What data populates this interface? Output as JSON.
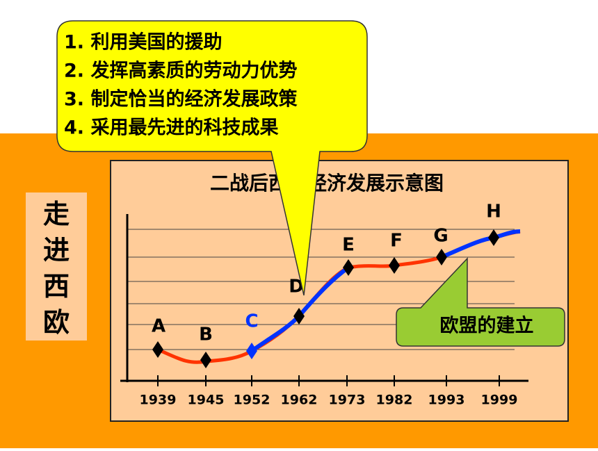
{
  "side_title": "走进西欧",
  "callout": {
    "items": [
      "1. 利用美国的援助",
      "2. 发挥高素质的劳动力优势",
      "3. 制定恰当的经济发展政策",
      "4. 采用最先进的科技成果"
    ]
  },
  "chart": {
    "title": "二战后西欧经济发展示意图",
    "points": [
      "A",
      "B",
      "C",
      "D",
      "E",
      "F",
      "G",
      "H"
    ],
    "years": [
      "1939",
      "1945",
      "1952",
      "1962",
      "1973",
      "1982",
      "1993",
      "1999"
    ]
  },
  "note": "欧盟的建立"
}
